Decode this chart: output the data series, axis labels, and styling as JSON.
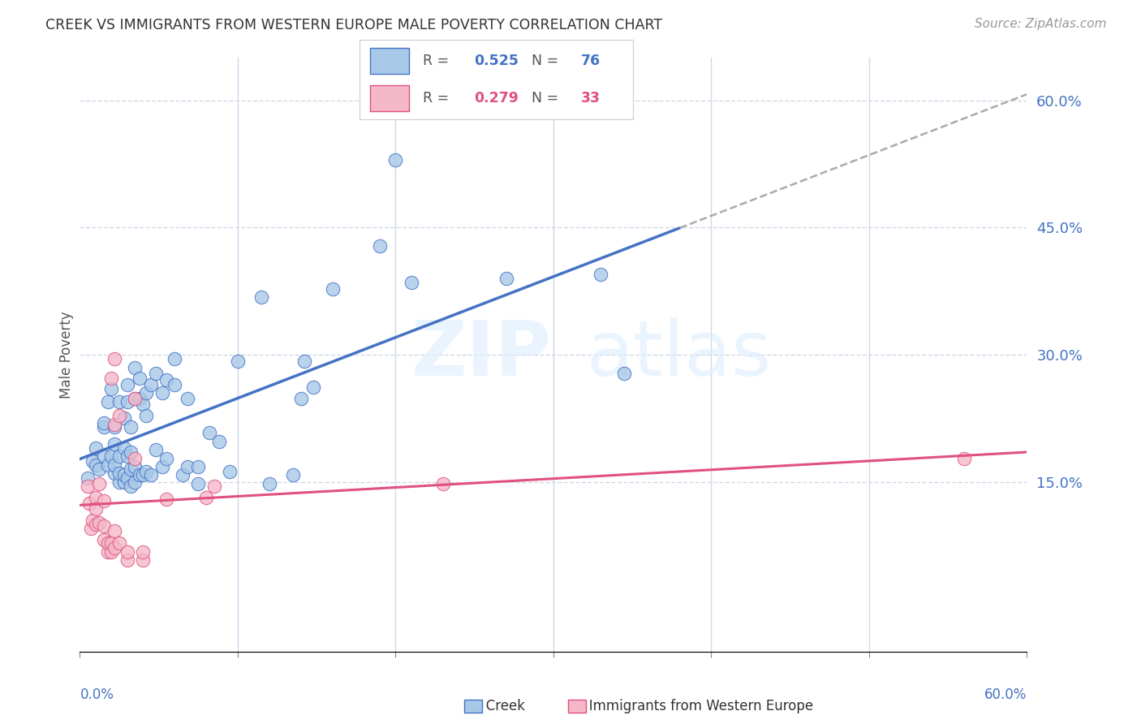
{
  "title": "CREEK VS IMMIGRANTS FROM WESTERN EUROPE MALE POVERTY CORRELATION CHART",
  "source": "Source: ZipAtlas.com",
  "ylabel": "Male Poverty",
  "right_yticks": [
    "60.0%",
    "45.0%",
    "30.0%",
    "15.0%"
  ],
  "right_ytick_vals": [
    0.6,
    0.45,
    0.3,
    0.15
  ],
  "creek_color": "#a8c8e8",
  "immigrants_color": "#f4b8c8",
  "creek_line_color": "#4472c4",
  "immigrants_line_color": "#e05080",
  "creek_scatter": [
    [
      0.005,
      0.155
    ],
    [
      0.008,
      0.175
    ],
    [
      0.01,
      0.19
    ],
    [
      0.01,
      0.17
    ],
    [
      0.012,
      0.165
    ],
    [
      0.015,
      0.215
    ],
    [
      0.015,
      0.22
    ],
    [
      0.015,
      0.18
    ],
    [
      0.018,
      0.17
    ],
    [
      0.018,
      0.245
    ],
    [
      0.02,
      0.26
    ],
    [
      0.02,
      0.18
    ],
    [
      0.022,
      0.16
    ],
    [
      0.022,
      0.17
    ],
    [
      0.022,
      0.215
    ],
    [
      0.022,
      0.195
    ],
    [
      0.025,
      0.15
    ],
    [
      0.025,
      0.16
    ],
    [
      0.025,
      0.18
    ],
    [
      0.025,
      0.245
    ],
    [
      0.028,
      0.15
    ],
    [
      0.028,
      0.158
    ],
    [
      0.028,
      0.19
    ],
    [
      0.028,
      0.225
    ],
    [
      0.03,
      0.155
    ],
    [
      0.03,
      0.18
    ],
    [
      0.03,
      0.245
    ],
    [
      0.03,
      0.265
    ],
    [
      0.032,
      0.145
    ],
    [
      0.032,
      0.165
    ],
    [
      0.032,
      0.185
    ],
    [
      0.032,
      0.215
    ],
    [
      0.035,
      0.15
    ],
    [
      0.035,
      0.168
    ],
    [
      0.035,
      0.248
    ],
    [
      0.035,
      0.285
    ],
    [
      0.038,
      0.158
    ],
    [
      0.038,
      0.248
    ],
    [
      0.038,
      0.272
    ],
    [
      0.04,
      0.158
    ],
    [
      0.04,
      0.242
    ],
    [
      0.042,
      0.162
    ],
    [
      0.042,
      0.228
    ],
    [
      0.042,
      0.255
    ],
    [
      0.045,
      0.158
    ],
    [
      0.045,
      0.265
    ],
    [
      0.048,
      0.188
    ],
    [
      0.048,
      0.278
    ],
    [
      0.052,
      0.168
    ],
    [
      0.052,
      0.255
    ],
    [
      0.055,
      0.178
    ],
    [
      0.055,
      0.27
    ],
    [
      0.06,
      0.265
    ],
    [
      0.06,
      0.295
    ],
    [
      0.065,
      0.158
    ],
    [
      0.068,
      0.168
    ],
    [
      0.068,
      0.248
    ],
    [
      0.075,
      0.148
    ],
    [
      0.075,
      0.168
    ],
    [
      0.082,
      0.208
    ],
    [
      0.088,
      0.198
    ],
    [
      0.095,
      0.162
    ],
    [
      0.1,
      0.292
    ],
    [
      0.115,
      0.368
    ],
    [
      0.12,
      0.148
    ],
    [
      0.135,
      0.158
    ],
    [
      0.14,
      0.248
    ],
    [
      0.142,
      0.292
    ],
    [
      0.148,
      0.262
    ],
    [
      0.16,
      0.378
    ],
    [
      0.19,
      0.428
    ],
    [
      0.21,
      0.385
    ],
    [
      0.27,
      0.39
    ],
    [
      0.33,
      0.395
    ],
    [
      0.345,
      0.278
    ],
    [
      0.2,
      0.53
    ]
  ],
  "immigrants_scatter": [
    [
      0.005,
      0.145
    ],
    [
      0.006,
      0.125
    ],
    [
      0.007,
      0.095
    ],
    [
      0.008,
      0.105
    ],
    [
      0.01,
      0.1
    ],
    [
      0.01,
      0.132
    ],
    [
      0.01,
      0.118
    ],
    [
      0.012,
      0.102
    ],
    [
      0.012,
      0.148
    ],
    [
      0.015,
      0.082
    ],
    [
      0.015,
      0.098
    ],
    [
      0.015,
      0.128
    ],
    [
      0.018,
      0.068
    ],
    [
      0.018,
      0.078
    ],
    [
      0.02,
      0.068
    ],
    [
      0.02,
      0.078
    ],
    [
      0.02,
      0.272
    ],
    [
      0.022,
      0.072
    ],
    [
      0.022,
      0.092
    ],
    [
      0.022,
      0.218
    ],
    [
      0.022,
      0.295
    ],
    [
      0.025,
      0.078
    ],
    [
      0.025,
      0.228
    ],
    [
      0.03,
      0.058
    ],
    [
      0.03,
      0.068
    ],
    [
      0.035,
      0.178
    ],
    [
      0.035,
      0.248
    ],
    [
      0.04,
      0.058
    ],
    [
      0.04,
      0.068
    ],
    [
      0.055,
      0.13
    ],
    [
      0.08,
      0.132
    ],
    [
      0.085,
      0.145
    ],
    [
      0.23,
      0.148
    ],
    [
      0.56,
      0.178
    ]
  ],
  "xlim": [
    0.0,
    0.6
  ],
  "ylim": [
    -0.05,
    0.65
  ],
  "plot_ylim": [
    0.0,
    0.6
  ],
  "background_color": "#ffffff",
  "grid_color": "#d0d8e8"
}
